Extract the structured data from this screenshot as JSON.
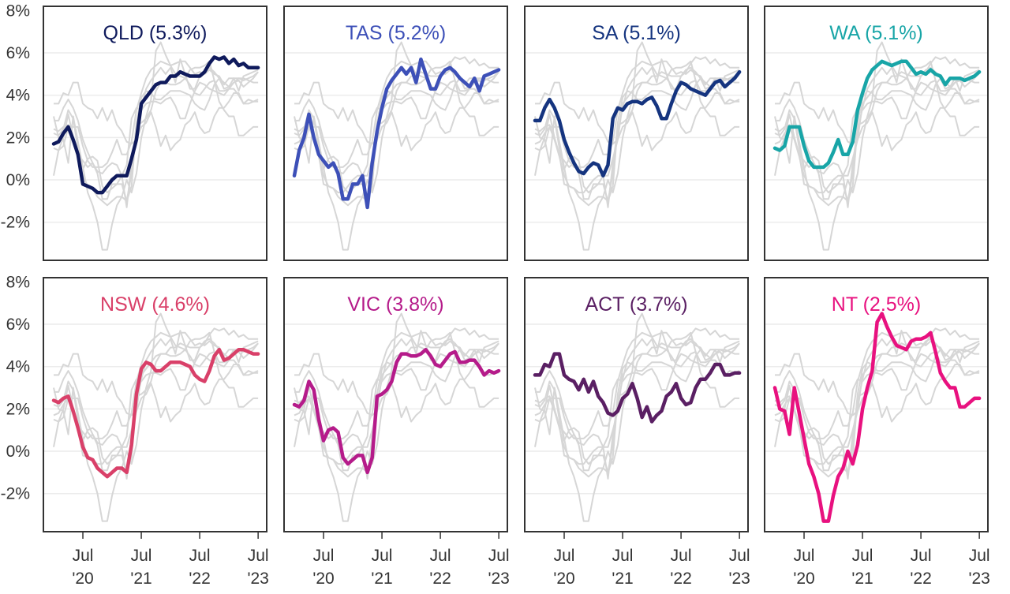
{
  "chart_data": {
    "type": "line",
    "layout": "small-multiples 2x4",
    "title": "",
    "xlabel": "",
    "ylabel": "",
    "ylim": [
      -3.8,
      8.2
    ],
    "yticks": [
      8,
      6,
      4,
      2,
      0,
      -2
    ],
    "ytick_labels": [
      "8%",
      "6%",
      "4%",
      "2%",
      "0%",
      "-2%"
    ],
    "gridlines": [
      6,
      4,
      2,
      0,
      -2
    ],
    "grid": true,
    "x_start": "Jan 2020",
    "x_end": "Jul 2023",
    "x_frequency": "monthly",
    "xticks_month_index": [
      6,
      18,
      30,
      42
    ],
    "xtick_labels": [
      [
        "Jul",
        "'20"
      ],
      [
        "Jul",
        "'21"
      ],
      [
        "Jul",
        "'22"
      ],
      [
        "Jul",
        "'23"
      ]
    ],
    "background_series_color": "#d6d6d6",
    "panels": [
      {
        "name": "QLD",
        "latest": "5.3%",
        "label": "QLD (5.3%)",
        "color": "#0f1a5c",
        "values": [
          1.7,
          1.8,
          2.2,
          2.5,
          1.9,
          1.2,
          -0.2,
          -0.3,
          -0.4,
          -0.6,
          -0.6,
          -0.3,
          0.0,
          0.2,
          0.2,
          0.2,
          1.0,
          1.9,
          3.6,
          3.9,
          4.2,
          4.5,
          4.6,
          4.6,
          4.9,
          4.9,
          5.1,
          5.0,
          4.9,
          4.9,
          4.9,
          5.1,
          5.5,
          5.8,
          5.7,
          5.8,
          5.5,
          5.7,
          5.4,
          5.5,
          5.3,
          5.3,
          5.3
        ]
      },
      {
        "name": "TAS",
        "latest": "5.2%",
        "label": "TAS (5.2%)",
        "color": "#3d50b8",
        "values": [
          0.2,
          1.4,
          2.0,
          3.1,
          2.0,
          1.2,
          0.9,
          0.6,
          0.8,
          0.3,
          -0.9,
          -0.9,
          -0.2,
          -0.2,
          0.2,
          -1.3,
          0.8,
          2.3,
          3.4,
          4.3,
          4.7,
          5.0,
          5.3,
          5.0,
          5.3,
          4.6,
          5.7,
          5.0,
          4.3,
          4.3,
          4.9,
          5.2,
          5.3,
          5.1,
          4.8,
          4.6,
          4.4,
          4.8,
          4.2,
          4.9,
          5.0,
          5.1,
          5.2
        ]
      },
      {
        "name": "SA",
        "latest": "5.1%",
        "label": "SA (5.1%)",
        "color": "#15347f",
        "values": [
          2.8,
          2.8,
          3.4,
          3.8,
          3.4,
          2.8,
          1.9,
          1.3,
          0.8,
          0.4,
          0.3,
          0.6,
          0.8,
          0.7,
          0.2,
          0.7,
          2.9,
          3.4,
          3.3,
          3.6,
          3.7,
          3.7,
          3.6,
          3.8,
          3.9,
          3.5,
          2.9,
          2.9,
          3.6,
          4.2,
          4.6,
          4.5,
          4.3,
          4.2,
          4.1,
          4.0,
          4.3,
          4.6,
          4.7,
          4.4,
          4.6,
          4.8,
          5.1
        ]
      },
      {
        "name": "WA",
        "latest": "5.1%",
        "label": "WA (5.1%)",
        "color": "#18a5a7",
        "values": [
          1.5,
          1.4,
          1.6,
          2.5,
          2.5,
          2.5,
          1.6,
          0.9,
          0.6,
          0.6,
          0.6,
          0.8,
          1.3,
          1.9,
          1.2,
          1.2,
          1.8,
          3.3,
          4.1,
          4.8,
          5.2,
          5.4,
          5.6,
          5.5,
          5.4,
          5.5,
          5.6,
          5.6,
          5.3,
          5.0,
          5.1,
          5.0,
          5.2,
          5.0,
          4.9,
          4.5,
          4.8,
          4.8,
          4.8,
          4.7,
          4.8,
          4.9,
          5.1
        ]
      },
      {
        "name": "NSW",
        "latest": "4.6%",
        "label": "NSW (4.6%)",
        "color": "#d94069",
        "values": [
          2.4,
          2.3,
          2.5,
          2.6,
          1.9,
          1.1,
          0.2,
          -0.3,
          -0.4,
          -0.8,
          -1.0,
          -1.2,
          -1.0,
          -0.8,
          -0.8,
          -1.0,
          0.3,
          2.7,
          3.9,
          4.2,
          4.1,
          3.8,
          3.8,
          4.0,
          4.2,
          4.2,
          4.2,
          4.1,
          4.0,
          3.6,
          3.4,
          3.3,
          3.8,
          4.5,
          4.8,
          4.3,
          4.4,
          4.6,
          4.8,
          4.8,
          4.7,
          4.6,
          4.6
        ]
      },
      {
        "name": "VIC",
        "latest": "3.8%",
        "label": "VIC (3.8%)",
        "color": "#b51b8a",
        "values": [
          2.2,
          2.1,
          2.4,
          3.3,
          2.9,
          1.5,
          0.5,
          1.0,
          1.1,
          0.9,
          -0.3,
          -0.6,
          -0.4,
          -0.2,
          -0.2,
          -1.0,
          -0.3,
          2.6,
          2.7,
          2.9,
          3.3,
          4.2,
          4.6,
          4.6,
          4.5,
          4.5,
          4.6,
          4.8,
          4.5,
          4.1,
          4.0,
          4.3,
          4.6,
          4.7,
          4.2,
          4.2,
          4.3,
          4.3,
          4.0,
          3.6,
          3.8,
          3.7,
          3.8
        ]
      },
      {
        "name": "ACT",
        "latest": "3.7%",
        "label": "ACT (3.7%)",
        "color": "#5a1f63",
        "values": [
          3.6,
          3.6,
          4.1,
          4.0,
          4.6,
          4.6,
          3.6,
          3.4,
          3.3,
          2.9,
          3.4,
          2.8,
          3.3,
          2.6,
          2.3,
          1.8,
          1.7,
          1.9,
          2.5,
          2.7,
          3.2,
          2.5,
          1.6,
          2.1,
          1.4,
          1.7,
          1.9,
          2.6,
          2.8,
          3.2,
          2.5,
          2.2,
          2.3,
          3.0,
          3.4,
          3.4,
          3.7,
          4.1,
          4.1,
          3.6,
          3.6,
          3.7,
          3.7
        ]
      },
      {
        "name": "NT",
        "latest": "2.5%",
        "label": "NT (2.5%)",
        "color": "#e8117f",
        "values": [
          3.0,
          2.0,
          1.9,
          0.8,
          3.0,
          1.8,
          0.6,
          -0.6,
          -1.2,
          -2.0,
          -3.3,
          -3.3,
          -2.1,
          -1.2,
          -0.8,
          0.0,
          -0.6,
          0.3,
          2.0,
          3.0,
          3.8,
          6.1,
          6.5,
          5.9,
          5.4,
          5.0,
          4.9,
          4.8,
          5.2,
          5.3,
          5.3,
          5.4,
          5.6,
          4.7,
          3.7,
          3.3,
          3.0,
          3.0,
          2.1,
          2.1,
          2.3,
          2.5,
          2.5
        ]
      }
    ]
  }
}
